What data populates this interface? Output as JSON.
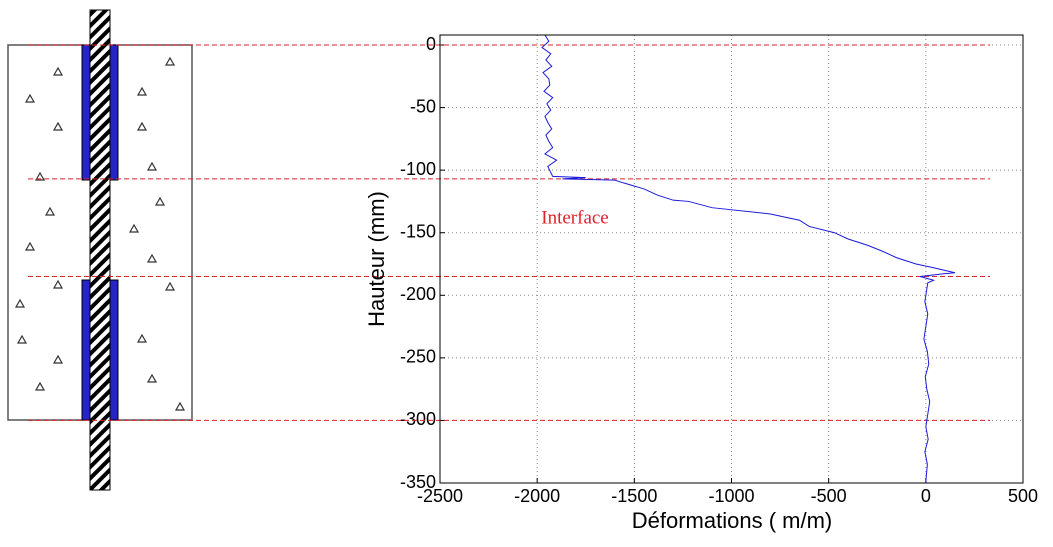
{
  "chart_data": {
    "type": "line",
    "xlabel": "Déformations (  m/m)",
    "ylabel": "Hauteur (mm)",
    "annotation": "Interface",
    "xlim": [
      -2500,
      500
    ],
    "ylim": [
      -350,
      8
    ],
    "xticks": [
      -2500,
      -2000,
      -1500,
      -1000,
      -500,
      0,
      500
    ],
    "yticks": [
      -350,
      -300,
      -250,
      -200,
      -150,
      -100,
      -50,
      0
    ],
    "grid": true,
    "reference_lines": {
      "color": "#e0202a",
      "values": [
        0,
        -107,
        -185,
        -300
      ]
    },
    "series": [
      {
        "color": "#1a1adb",
        "x": [
          -1960,
          -1940,
          -1975,
          -1930,
          -1955,
          -1925,
          -1970,
          -1940,
          -1935,
          -1965,
          -1920,
          -1950,
          -1930,
          -1960,
          -1945,
          -1925,
          -1955,
          -1940,
          -1920,
          -1960,
          -1900,
          -1945,
          -1930,
          -1920,
          -1750,
          -1870,
          -1600,
          -1560,
          -1450,
          -1380,
          -1300,
          -1220,
          -1100,
          -800,
          -650,
          -600,
          -470,
          -400,
          -300,
          -220,
          -150,
          -50,
          40,
          150,
          80,
          -30,
          40,
          10,
          5,
          -5,
          10,
          0,
          -10,
          8,
          15,
          -3,
          5,
          20,
          10,
          0,
          12,
          -5,
          8,
          2,
          0
        ],
        "values": [
          8,
          3,
          -2,
          -7,
          -12,
          -17,
          -22,
          -27,
          -32,
          -37,
          -42,
          -47,
          -52,
          -57,
          -62,
          -67,
          -72,
          -77,
          -82,
          -87,
          -92,
          -97,
          -102,
          -105,
          -106,
          -107,
          -108,
          -110,
          -115,
          -120,
          -124,
          -125,
          -130,
          -135,
          -140,
          -145,
          -150,
          -155,
          -160,
          -165,
          -170,
          -175,
          -178,
          -182,
          -183,
          -185,
          -188,
          -190,
          -195,
          -205,
          -215,
          -225,
          -235,
          -245,
          -255,
          -265,
          -275,
          -285,
          -295,
          -305,
          -315,
          -325,
          -335,
          -345,
          -350
        ]
      }
    ]
  }
}
